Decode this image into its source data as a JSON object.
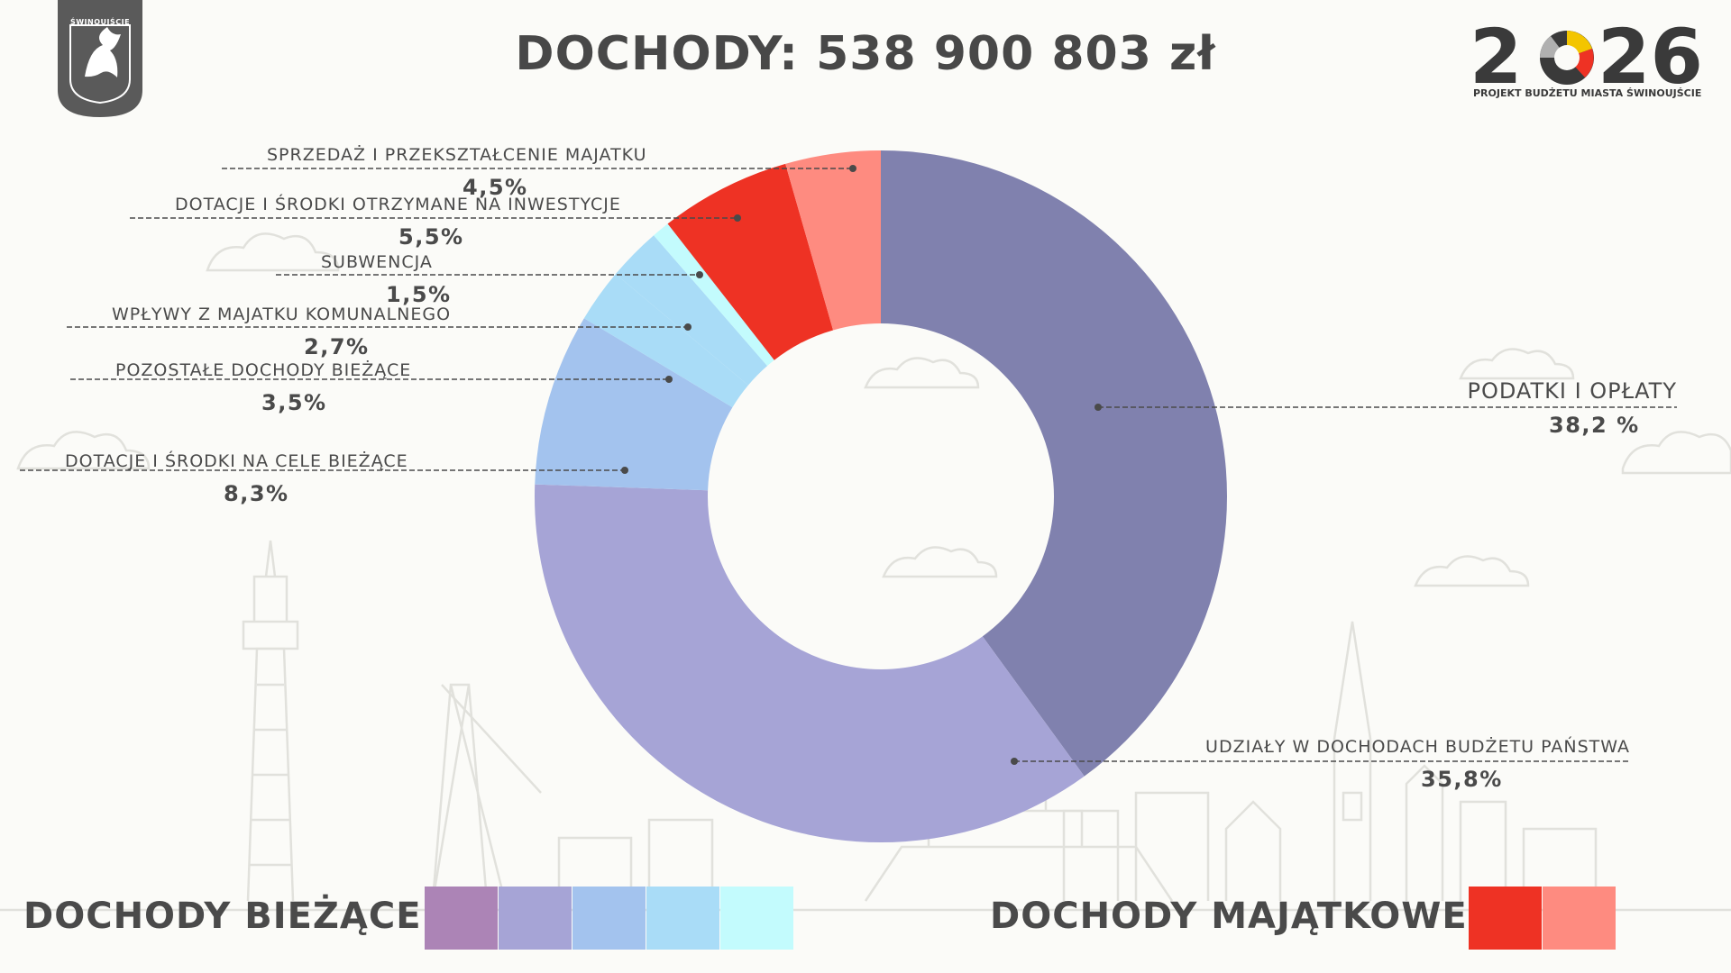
{
  "header": {
    "title": "DOCHODY: 538 900 803 zł",
    "crest_label": "ŚWINOUJŚCIE",
    "logo_year": "2026",
    "logo_subtitle": "PROJEKT BUDŻETU MIASTA ŚWINOUJŚCIE"
  },
  "chart_data": {
    "type": "pie",
    "donut": true,
    "title": "DOCHODY: 538 900 803 zł",
    "slices": [
      {
        "key": "podatki",
        "label": "PODATKI I OPŁATY",
        "value_label": "38,2 %",
        "value": 38.2,
        "color": "#8081ae",
        "group": "biezace"
      },
      {
        "key": "udzialy",
        "label": "UDZIAŁY W DOCHODACH BUDŻETU PAŃSTWA",
        "value_label": "35,8%",
        "value": 35.8,
        "color": "#a6a4d6",
        "group": "biezace"
      },
      {
        "key": "dotacje_biezace",
        "label": "DOTACJE I ŚRODKI NA CELE BIEŻĄCE",
        "value_label": "8,3%",
        "value": 8.3,
        "color": "#a3c3ee",
        "group": "biezace"
      },
      {
        "key": "pozostale",
        "label": "POZOSTAŁE DOCHODY BIEŻĄCE",
        "value_label": "3,5%",
        "value": 3.5,
        "color": "#a9dcf7",
        "group": "biezace"
      },
      {
        "key": "wplywy",
        "label": "WPŁYWY Z MAJATKU KOMUNALNEGO",
        "value_label": "2,7%",
        "value": 2.7,
        "color": "#a9dcf7",
        "group": "biezace"
      },
      {
        "key": "subwencja",
        "label": "SUBWENCJA",
        "value_label": "1,5%",
        "value": 1.5,
        "color": "#c3fbfd",
        "group": "biezace"
      },
      {
        "key": "dotacje_inwestycje",
        "label": "DOTACJE I ŚRODKI OTRZYMANE NA INWESTYCJE",
        "value_label": "5,5%",
        "value": 5.5,
        "color": "#ee3224",
        "group": "majatkowe"
      },
      {
        "key": "sprzedaz",
        "label": "SPRZEDAŻ I PRZEKSZTAŁCENIE MAJATKU",
        "value_label": "4,5%",
        "value": 4.5,
        "color": "#fe8b80",
        "group": "majatkowe"
      }
    ]
  },
  "legend": {
    "current_title": "DOCHODY BIEŻĄCE",
    "current_colors": [
      "#ac84b6",
      "#a6a4d6",
      "#a3c3ee",
      "#a9dcf7",
      "#c3fbfd"
    ],
    "capital_title": "DOCHODY MAJĄTKOWE",
    "capital_colors": [
      "#ee3224",
      "#fe8b80"
    ]
  }
}
